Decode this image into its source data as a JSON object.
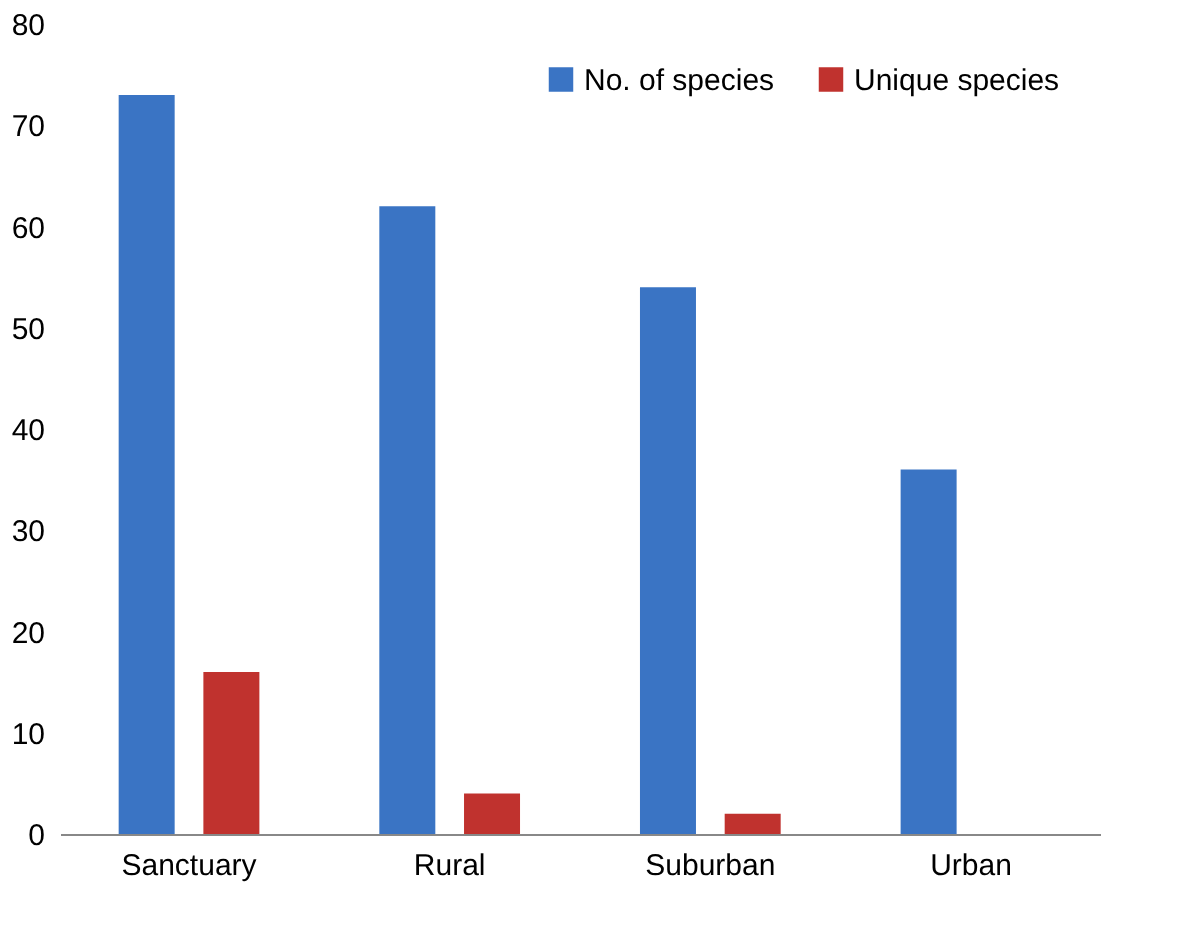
{
  "chart_data": {
    "type": "bar",
    "categories": [
      "Sanctuary",
      "Rural",
      "Suburban",
      "Urban"
    ],
    "series": [
      {
        "name": "No. of species",
        "color": "#3a74c4",
        "values": [
          73,
          62,
          54,
          36
        ]
      },
      {
        "name": "Unique species",
        "color": "#c0322e",
        "values": [
          16,
          4,
          2,
          0
        ]
      }
    ],
    "ylim": [
      0,
      80
    ],
    "yticks": [
      0,
      10,
      20,
      30,
      40,
      50,
      60,
      70,
      80
    ],
    "grid": false,
    "legend": "top right"
  }
}
